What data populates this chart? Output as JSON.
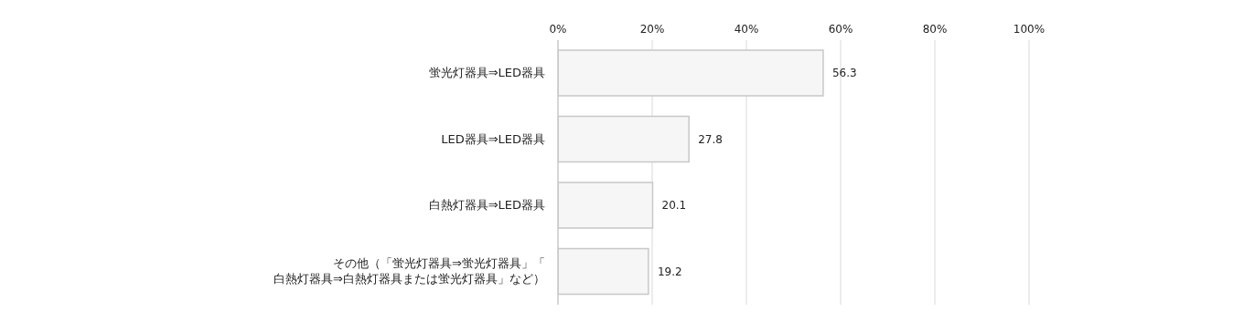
{
  "chart_data": {
    "type": "bar",
    "orientation": "horizontal",
    "categories": [
      "蛍光灯器具⇒LED器具",
      "LED器具⇒LED器具",
      "白熱灯器具⇒LED器具",
      "その他（「蛍光灯器具⇒蛍光灯器具」「白熱灯器具⇒白熱灯器具または蛍光灯器具」など）"
    ],
    "values": [
      56.3,
      27.8,
      20.1,
      19.2
    ],
    "color": "#f5f6f5",
    "xlim": [
      0,
      100
    ],
    "xticks": [
      {
        "value": 0,
        "label": "0%"
      },
      {
        "value": 20,
        "label": "20%"
      },
      {
        "value": 40,
        "label": "40%"
      },
      {
        "value": 60,
        "label": "60%"
      },
      {
        "value": 80,
        "label": "80%"
      },
      {
        "value": 100,
        "label": "100%"
      }
    ],
    "grid": "x",
    "data_labels": true
  }
}
